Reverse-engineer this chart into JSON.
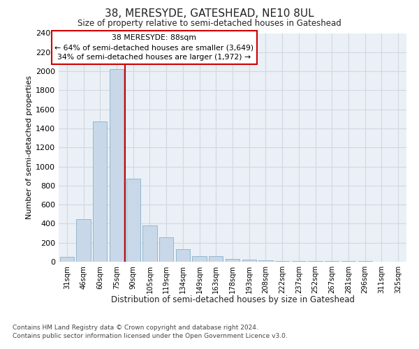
{
  "title": "38, MERESYDE, GATESHEAD, NE10 8UL",
  "subtitle": "Size of property relative to semi-detached houses in Gateshead",
  "xlabel": "Distribution of semi-detached houses by size in Gateshead",
  "ylabel": "Number of semi-detached properties",
  "categories": [
    "31sqm",
    "46sqm",
    "60sqm",
    "75sqm",
    "90sqm",
    "105sqm",
    "119sqm",
    "134sqm",
    "149sqm",
    "163sqm",
    "178sqm",
    "193sqm",
    "208sqm",
    "222sqm",
    "237sqm",
    "252sqm",
    "267sqm",
    "281sqm",
    "296sqm",
    "311sqm",
    "325sqm"
  ],
  "values": [
    50,
    450,
    1470,
    2020,
    870,
    380,
    255,
    130,
    55,
    55,
    30,
    20,
    15,
    10,
    10,
    5,
    5,
    5,
    5,
    0,
    0
  ],
  "bar_color": "#c8d8e8",
  "bar_edge_color": "#8ab0cc",
  "vline_x": 4.0,
  "vline_color": "#cc0000",
  "annotation_text": "38 MERESYDE: 88sqm\n← 64% of semi-detached houses are smaller (3,649)\n34% of semi-detached houses are larger (1,972) →",
  "annotation_box_color": "#ffffff",
  "annotation_box_edge_color": "#cc0000",
  "ylim": [
    0,
    2400
  ],
  "yticks": [
    0,
    200,
    400,
    600,
    800,
    1000,
    1200,
    1400,
    1600,
    1800,
    2000,
    2200,
    2400
  ],
  "grid_color": "#d0d8e0",
  "background_color": "#eaf0f6",
  "footer_line1": "Contains HM Land Registry data © Crown copyright and database right 2024.",
  "footer_line2": "Contains public sector information licensed under the Open Government Licence v3.0."
}
